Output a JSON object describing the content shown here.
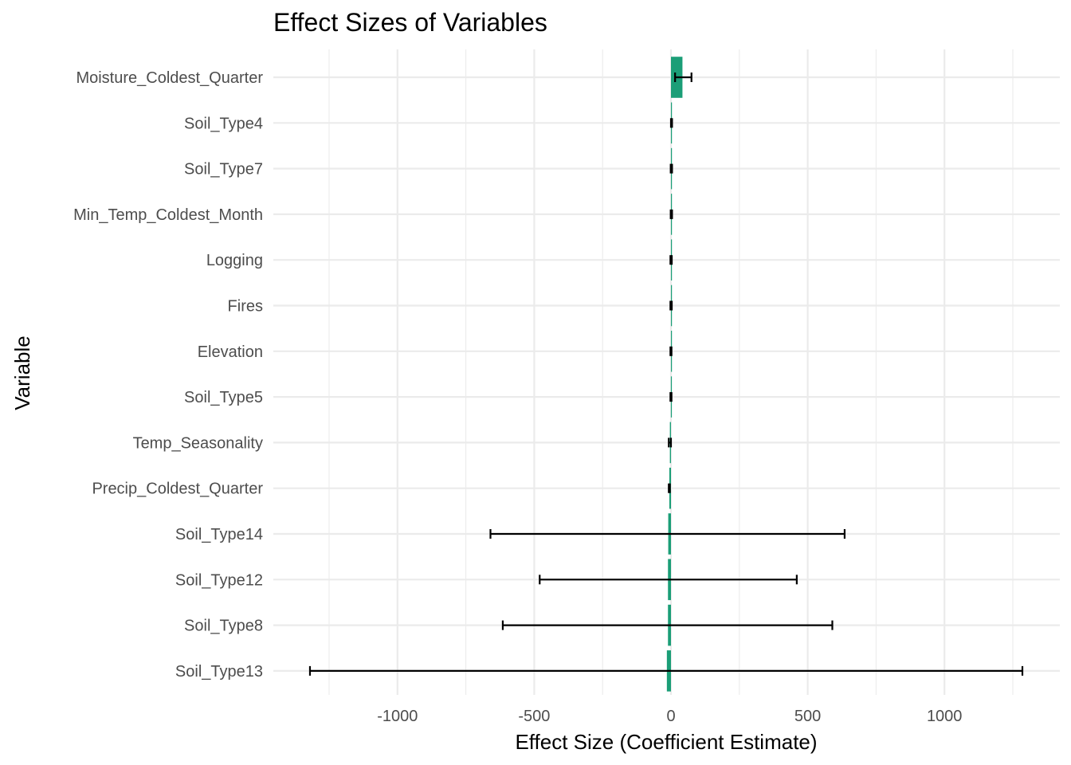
{
  "chart_data": {
    "type": "bar",
    "orientation": "horizontal",
    "title": "Effect Sizes of Variables",
    "xlabel": "Effect Size (Coefficient Estimate)",
    "ylabel": "Variable",
    "xlim": [
      -1450,
      1450
    ],
    "xticks": [
      -1000,
      -500,
      0,
      500,
      1000
    ],
    "xtick_labels": [
      "-1000",
      "-500",
      "0",
      "500",
      "1000"
    ],
    "grid": true,
    "bar_color": "#1b9e77",
    "categories": [
      "Moisture_Coldest_Quarter",
      "Soil_Type4",
      "Soil_Type7",
      "Min_Temp_Coldest_Month",
      "Logging",
      "Fires",
      "Elevation",
      "Soil_Type5",
      "Temp_Seasonality",
      "Precip_Coldest_Quarter",
      "Soil_Type14",
      "Soil_Type12",
      "Soil_Type8",
      "Soil_Type13"
    ],
    "values": [
      42,
      2,
      1.5,
      1.2,
      0.5,
      0.3,
      0.2,
      -0.3,
      -4,
      -6,
      -10,
      -11,
      -11,
      -15
    ],
    "error_low": [
      15,
      0,
      -1,
      -1,
      -2,
      -2,
      -2,
      -2,
      -8,
      -8,
      -660,
      -480,
      -615,
      -1320
    ],
    "error_high": [
      75,
      4,
      4,
      4,
      3,
      3,
      2,
      2,
      0,
      -4,
      635,
      460,
      590,
      1285
    ]
  }
}
